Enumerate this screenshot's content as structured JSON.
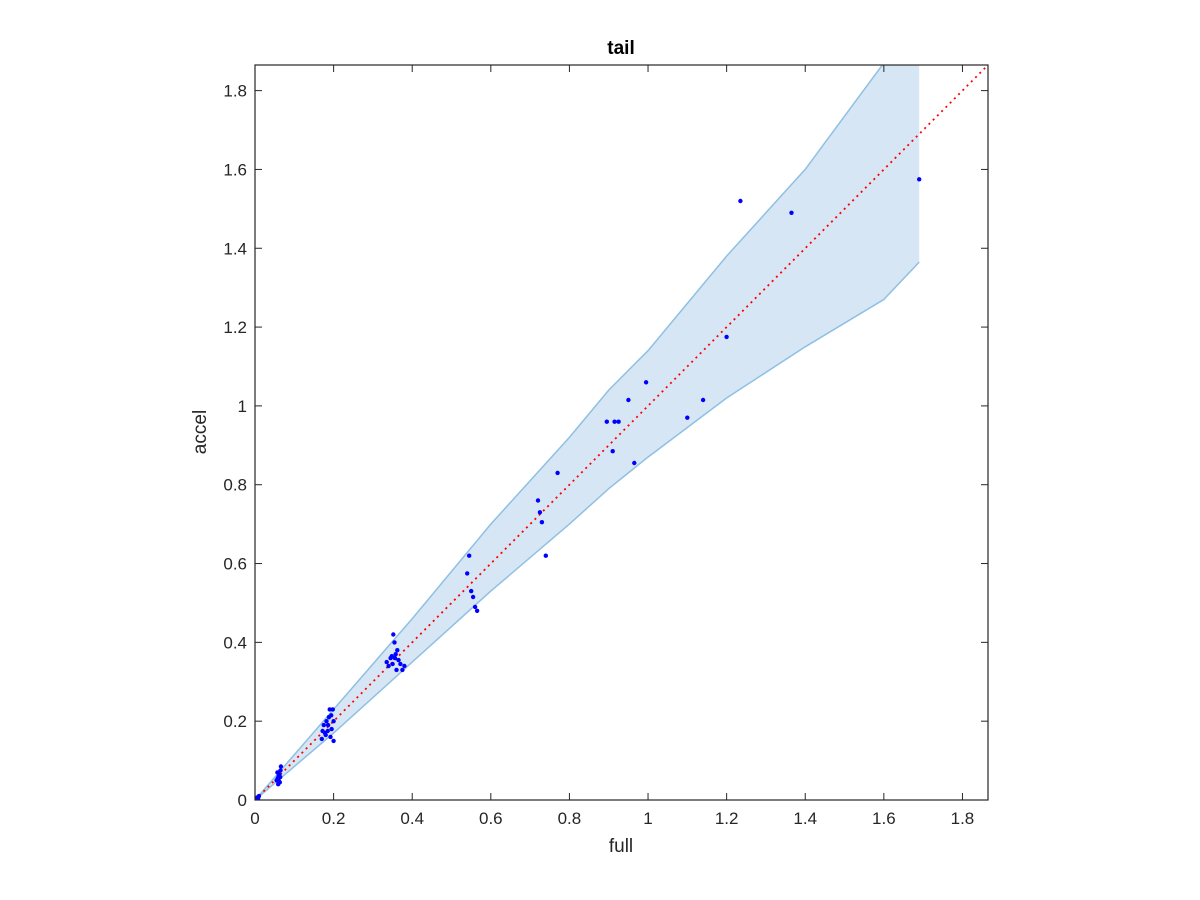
{
  "chart_data": {
    "type": "scatter",
    "title": "tail",
    "xlabel": "full",
    "ylabel": "accel",
    "xlim": [
      0,
      1.865
    ],
    "ylim": [
      0,
      1.865
    ],
    "xticks": [
      0,
      0.2,
      0.4,
      0.6,
      0.8,
      1,
      1.2,
      1.4,
      1.6,
      1.8
    ],
    "yticks": [
      0,
      0.2,
      0.4,
      0.6,
      0.8,
      1,
      1.2,
      1.4,
      1.6,
      1.8
    ],
    "xtick_labels": [
      "0",
      "0.2",
      "0.4",
      "0.6",
      "0.8",
      "1",
      "1.2",
      "1.4",
      "1.6",
      "1.8"
    ],
    "ytick_labels": [
      "0",
      "0.2",
      "0.4",
      "0.6",
      "0.8",
      "1",
      "1.2",
      "1.4",
      "1.6",
      "1.8"
    ],
    "grid": false,
    "colors": {
      "points": "#0000ff",
      "reference_line": "#ff0000",
      "band_fill": "#d6e6f4",
      "band_edge": "#8fc0e3",
      "axes": "#262626"
    },
    "reference_line": {
      "from": [
        0,
        0
      ],
      "to": [
        1.865,
        1.865
      ],
      "style": "dotted"
    },
    "band": {
      "upper": [
        [
          0,
          0
        ],
        [
          0.2,
          0.23
        ],
        [
          0.4,
          0.46
        ],
        [
          0.6,
          0.7
        ],
        [
          0.8,
          0.92
        ],
        [
          0.9,
          1.04
        ],
        [
          1.0,
          1.14
        ],
        [
          1.2,
          1.38
        ],
        [
          1.4,
          1.6
        ],
        [
          1.6,
          1.87
        ],
        [
          1.69,
          1.87
        ]
      ],
      "lower": [
        [
          0,
          0
        ],
        [
          0.2,
          0.17
        ],
        [
          0.4,
          0.35
        ],
        [
          0.6,
          0.53
        ],
        [
          0.8,
          0.7
        ],
        [
          0.9,
          0.79
        ],
        [
          1.0,
          0.87
        ],
        [
          1.2,
          1.02
        ],
        [
          1.4,
          1.15
        ],
        [
          1.6,
          1.27
        ],
        [
          1.69,
          1.365
        ]
      ]
    },
    "points": [
      [
        0.003,
        0.003
      ],
      [
        0.005,
        0.006
      ],
      [
        0.008,
        0.004
      ],
      [
        0.01,
        0.01
      ],
      [
        0.055,
        0.05
      ],
      [
        0.058,
        0.055
      ],
      [
        0.06,
        0.06
      ],
      [
        0.062,
        0.065
      ],
      [
        0.057,
        0.07
      ],
      [
        0.063,
        0.045
      ],
      [
        0.065,
        0.075
      ],
      [
        0.066,
        0.085
      ],
      [
        0.06,
        0.05
      ],
      [
        0.059,
        0.04
      ],
      [
        0.064,
        0.058
      ],
      [
        0.17,
        0.155
      ],
      [
        0.175,
        0.19
      ],
      [
        0.18,
        0.165
      ],
      [
        0.182,
        0.2
      ],
      [
        0.185,
        0.175
      ],
      [
        0.188,
        0.21
      ],
      [
        0.19,
        0.23
      ],
      [
        0.192,
        0.16
      ],
      [
        0.195,
        0.18
      ],
      [
        0.198,
        0.23
      ],
      [
        0.2,
        0.2
      ],
      [
        0.2,
        0.15
      ],
      [
        0.178,
        0.17
      ],
      [
        0.186,
        0.19
      ],
      [
        0.194,
        0.215
      ],
      [
        0.172,
        0.175
      ],
      [
        0.335,
        0.35
      ],
      [
        0.34,
        0.34
      ],
      [
        0.345,
        0.36
      ],
      [
        0.35,
        0.345
      ],
      [
        0.352,
        0.42
      ],
      [
        0.355,
        0.4
      ],
      [
        0.358,
        0.37
      ],
      [
        0.36,
        0.33
      ],
      [
        0.362,
        0.38
      ],
      [
        0.365,
        0.355
      ],
      [
        0.37,
        0.345
      ],
      [
        0.375,
        0.33
      ],
      [
        0.38,
        0.34
      ],
      [
        0.348,
        0.365
      ],
      [
        0.356,
        0.36
      ],
      [
        0.54,
        0.575
      ],
      [
        0.545,
        0.62
      ],
      [
        0.55,
        0.53
      ],
      [
        0.555,
        0.515
      ],
      [
        0.56,
        0.49
      ],
      [
        0.565,
        0.48
      ],
      [
        0.72,
        0.76
      ],
      [
        0.725,
        0.73
      ],
      [
        0.73,
        0.705
      ],
      [
        0.74,
        0.62
      ],
      [
        0.77,
        0.83
      ],
      [
        0.895,
        0.96
      ],
      [
        0.91,
        0.885
      ],
      [
        0.915,
        0.96
      ],
      [
        0.925,
        0.96
      ],
      [
        0.95,
        1.015
      ],
      [
        0.965,
        0.855
      ],
      [
        0.995,
        1.06
      ],
      [
        1.1,
        0.97
      ],
      [
        1.14,
        1.015
      ],
      [
        1.2,
        1.175
      ],
      [
        1.235,
        1.52
      ],
      [
        1.365,
        1.49
      ],
      [
        1.69,
        1.575
      ]
    ]
  }
}
